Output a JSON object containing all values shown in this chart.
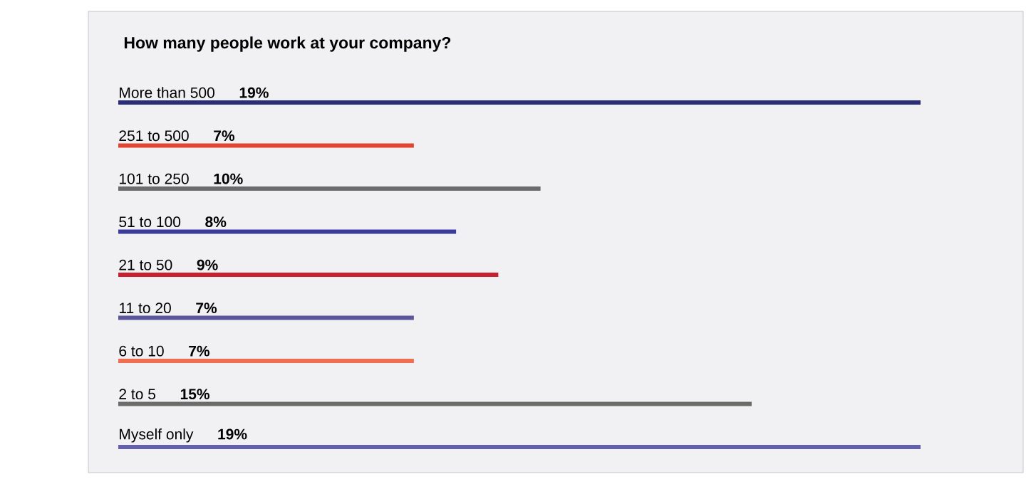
{
  "chart_data": {
    "type": "bar",
    "orientation": "horizontal",
    "title": "How many people work at your company?",
    "categories": [
      "More than 500",
      "251 to 500",
      "101 to 250",
      "51 to 100",
      "21 to 50",
      "11 to 20",
      "6 to 10",
      "2 to 5",
      "Myself only"
    ],
    "values": [
      19,
      7,
      10,
      8,
      9,
      7,
      7,
      15,
      19
    ],
    "value_labels": [
      "19%",
      "7%",
      "10%",
      "8%",
      "9%",
      "7%",
      "7%",
      "15%",
      "19%"
    ],
    "colors": [
      "#2b2d7a",
      "#e04432",
      "#6b6b6b",
      "#3a3b9a",
      "#c8202f",
      "#5b559a",
      "#ef6d50",
      "#6b6b6b",
      "#6360b0"
    ]
  }
}
